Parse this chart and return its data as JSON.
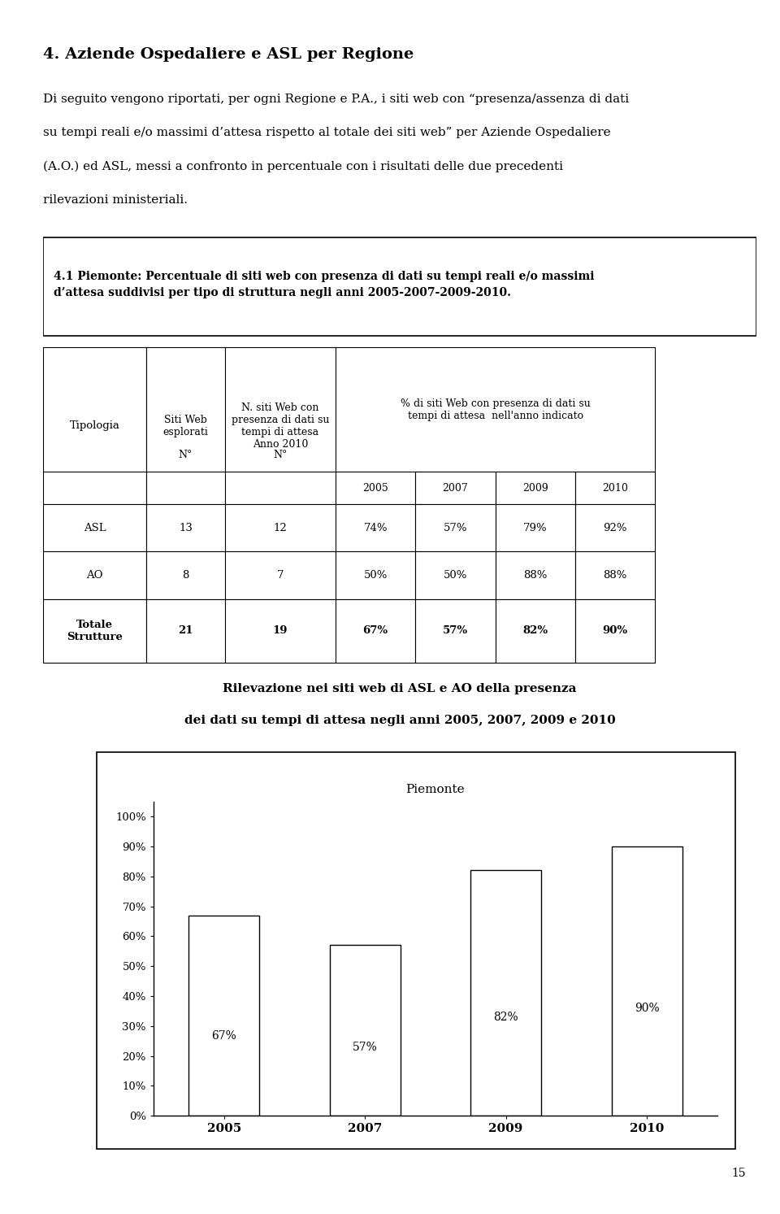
{
  "page_title": "4. Aziende Ospedaliere e ASL per Regione",
  "intro_lines": [
    "Di seguito vengono riportati, per ogni Regione e P.A., i siti web con “presenza/assenza di dati",
    "su tempi reali e/o massimi d’attesa rispetto al totale dei siti web” per Aziende Ospedaliere",
    "(A.O.) ed ASL, messi a confronto in percentuale con i risultati delle due precedenti",
    "rilevazioni ministeriali."
  ],
  "section_title_line1": "4.1 Piemonte: Percentuale di siti web con presenza di dati su tempi reali e/o massimi",
  "section_title_line2": "d’attesa suddivisi per tipo di struttura negli anni 2005-2007-2009-2010.",
  "col_header_1": "Tipologia",
  "col_header_2": "Siti Web\nesplorati",
  "col_header_3": "N. siti Web con\npresenza di dati su\ntempi di attesa\nAnno 2010",
  "col_header_4": "% di siti Web con presenza di dati su\ntempi di attesa  nell'anno indicato",
  "subheader_N1": "N°",
  "subheader_N2": "N°",
  "subheader_years": [
    "2005",
    "2007",
    "2009",
    "2010"
  ],
  "row_asl": [
    "ASL",
    "13",
    "12",
    "74%",
    "57%",
    "79%",
    "92%"
  ],
  "row_ao": [
    "AO",
    "8",
    "7",
    "50%",
    "50%",
    "88%",
    "88%"
  ],
  "row_totale": [
    "Totale\nStrutture",
    "21",
    "19",
    "67%",
    "57%",
    "82%",
    "90%"
  ],
  "chart_subtitle1": "Rilevazione nei siti web di ASL e AO della presenza",
  "chart_subtitle2": "dei dati su tempi di attesa negli anni 2005, 2007, 2009 e 2010",
  "chart_title": "Piemonte",
  "bar_years": [
    "2005",
    "2007",
    "2009",
    "2010"
  ],
  "bar_values": [
    0.67,
    0.57,
    0.82,
    0.9
  ],
  "bar_labels": [
    "67%",
    "57%",
    "82%",
    "90%"
  ],
  "ytick_vals": [
    0.0,
    0.1,
    0.2,
    0.3,
    0.4,
    0.5,
    0.6,
    0.7,
    0.8,
    0.9,
    1.0
  ],
  "ytick_labels": [
    "0%",
    "10%",
    "20%",
    "30%",
    "40%",
    "50%",
    "60%",
    "70%",
    "80%",
    "90%",
    "100%"
  ],
  "page_number": "15",
  "bar_color": "white",
  "bar_edgecolor": "black",
  "bg_color": "white"
}
